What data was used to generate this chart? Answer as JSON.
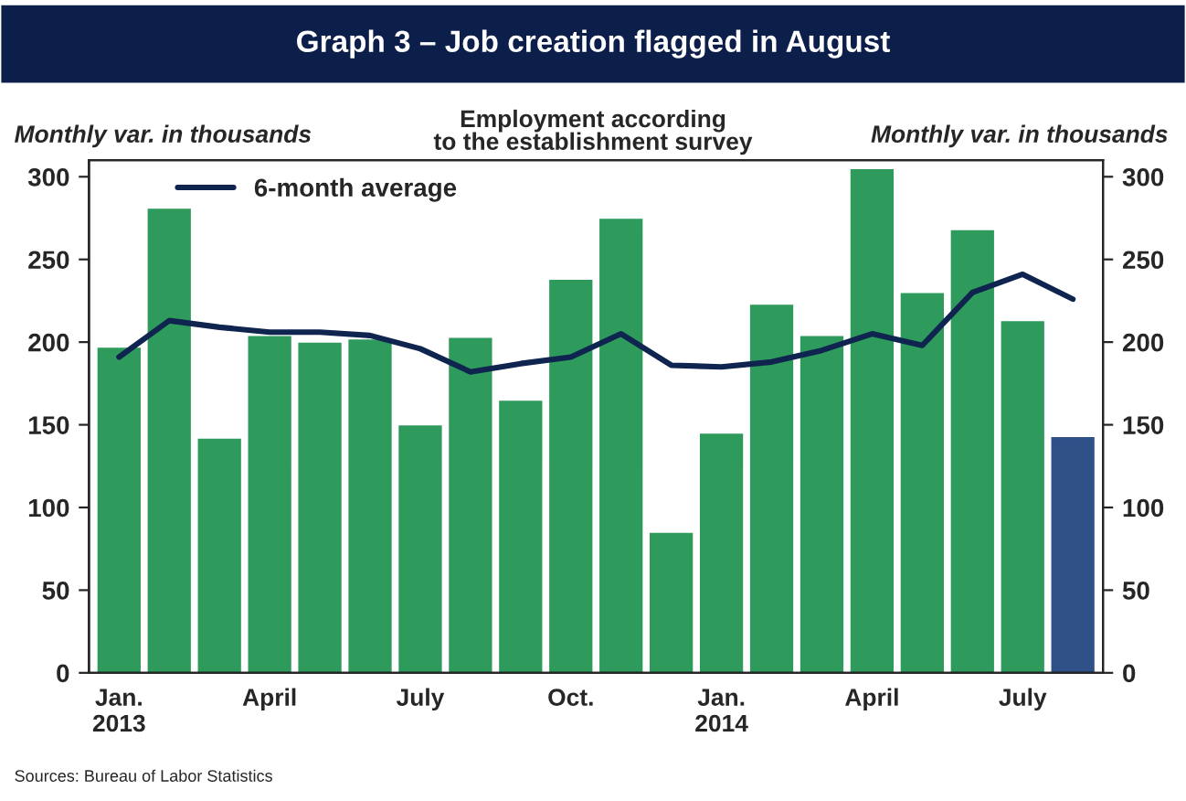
{
  "chart_data": {
    "type": "bar",
    "title": "Graph 3 – Job creation flagged in August",
    "subtitle": "Employment according\nto the establishment survey",
    "ylabel": "Monthly var. in thousands",
    "y2label": "Monthly var. in thousands",
    "categories": [
      "Jan.\n2013",
      null,
      null,
      "April",
      null,
      null,
      "July",
      null,
      null,
      "Oct.",
      null,
      null,
      "Jan.\n2014",
      null,
      null,
      "April",
      null,
      null,
      "July",
      null
    ],
    "series": [
      {
        "colors": [
          "#2e9a5c",
          "#2e9a5c",
          "#2e9a5c",
          "#2e9a5c",
          "#2e9a5c",
          "#2e9a5c",
          "#2e9a5c",
          "#2e9a5c",
          "#2e9a5c",
          "#2e9a5c",
          "#2e9a5c",
          "#2e9a5c",
          "#2e9a5c",
          "#2e9a5c",
          "#2e9a5c",
          "#2e9a5c",
          "#2e9a5c",
          "#2e9a5c",
          "#2e9a5c",
          "#2f5188"
        ],
        "values": [
          196,
          280,
          141,
          203,
          199,
          201,
          149,
          202,
          164,
          237,
          274,
          84,
          144,
          222,
          203,
          304,
          229,
          267,
          212,
          142
        ]
      },
      {
        "type": "line",
        "name": "6-month average",
        "color": "#0f2550",
        "values": [
          191,
          213,
          209,
          206,
          206,
          204,
          196,
          182,
          187,
          191,
          205,
          186,
          185,
          188,
          195,
          205,
          198,
          230,
          241,
          226
        ]
      }
    ],
    "ylim": [
      0,
      310
    ],
    "yticks": [
      0,
      50,
      100,
      150,
      200,
      250,
      300
    ],
    "y2lim": [
      0,
      310
    ],
    "y2ticks": [
      0,
      50,
      100,
      150,
      200,
      250,
      300
    ],
    "grid": false,
    "legend": "top left",
    "annotations": [
      "Sources: Bureau of Labor Statistics"
    ]
  }
}
